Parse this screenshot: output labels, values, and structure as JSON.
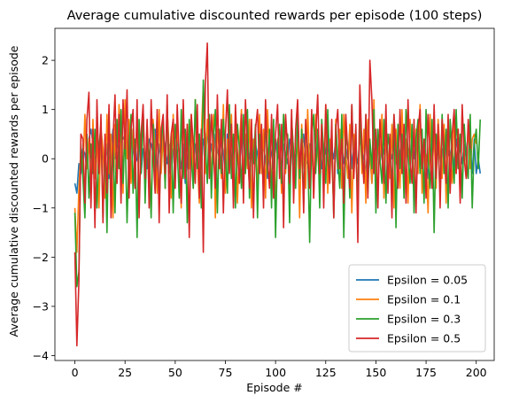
{
  "chart_data": {
    "type": "line",
    "title": "Average cumulative discounted rewards per episode (100 steps)",
    "xlabel": "Episode #",
    "ylabel": "Average cumulative discounted rewards per episode",
    "xlim": [
      -9.95,
      208.95
    ],
    "ylim": [
      -4.1,
      2.65
    ],
    "xticks": [
      0,
      25,
      50,
      75,
      100,
      125,
      150,
      175,
      200
    ],
    "yticks": [
      -4,
      -3,
      -2,
      -1,
      0,
      1,
      2
    ],
    "ytick_labels": [
      "−4",
      "−3",
      "−2",
      "−1",
      "0",
      "1",
      "2"
    ],
    "legend_position": "lower-right",
    "grid": false,
    "series": [
      {
        "name": "Epsilon = 0.05",
        "color": "#1f77b4",
        "values": [
          -0.5,
          -0.7,
          -0.1,
          -0.3,
          0.2,
          0.1,
          -0.2,
          0.4,
          0.6,
          0.3,
          -0.1,
          0.3,
          -0.3,
          0.4,
          0.0,
          -0.2,
          0.3,
          -0.4,
          0.2,
          0.6,
          0.0,
          0.3,
          0.2,
          0.5,
          0.4,
          0.5,
          0.3,
          0.1,
          0.5,
          0.2,
          -0.1,
          0.0,
          0.4,
          -0.3,
          0.2,
          0.1,
          -0.2,
          0.4,
          0.3,
          0.1,
          0.6,
          -0.4,
          0.3,
          0.0,
          0.5,
          0.2,
          -0.1,
          0.3,
          0.0,
          0.2,
          -0.4,
          0.5,
          0.1,
          -0.2,
          0.3,
          -0.5,
          0.0,
          0.4,
          0.2,
          -0.1,
          0.3,
          0.1,
          0.5,
          -0.2,
          0.4,
          0.2,
          0.6,
          0.0,
          0.3,
          -0.1,
          0.5,
          0.2,
          0.0,
          0.4,
          0.1,
          -0.3,
          0.5,
          0.3,
          0.0,
          -0.2,
          0.4,
          0.1,
          -0.1,
          0.3,
          0.5,
          -0.2,
          0.2,
          0.0,
          0.6,
          -0.1,
          0.3,
          0.1,
          -0.3,
          0.4,
          0.2,
          0.0,
          -0.4,
          0.3,
          0.1,
          -0.2,
          0.4,
          0.0,
          0.2,
          -0.5,
          0.3,
          0.1,
          -0.1,
          0.4,
          0.2,
          -0.3,
          0.0,
          0.3,
          -0.2,
          0.1,
          0.5,
          0.0,
          -0.1,
          0.3,
          0.2,
          -0.4,
          0.1,
          0.4,
          0.0,
          -0.2,
          0.3,
          0.1,
          0.5,
          -0.1,
          0.2,
          0.0,
          0.4,
          -0.3,
          0.1,
          0.3,
          -0.1,
          0.2,
          0.0,
          0.6,
          -0.2,
          0.3,
          0.1,
          -0.1,
          0.4,
          0.2,
          0.0,
          -0.3,
          0.3,
          0.1,
          -0.5,
          0.2,
          0.0,
          0.4,
          -0.1,
          0.3,
          0.1,
          0.5,
          -0.2,
          0.2,
          0.0,
          0.3,
          -0.1,
          0.4,
          0.1,
          0.0,
          -0.3,
          0.3,
          0.2,
          -0.1,
          0.4,
          0.0,
          0.2,
          0.5,
          -0.2,
          0.1,
          0.3,
          0.0,
          -0.4,
          0.2,
          0.1,
          0.4,
          -0.1,
          0.3,
          0.0,
          0.2,
          -0.3,
          0.5,
          0.1,
          0.0,
          0.3,
          -0.2,
          0.4,
          0.1,
          0.2,
          -0.1,
          0.3,
          0.0,
          0.6,
          0.2,
          -0.3,
          0.4,
          -0.3,
          0.0,
          -0.3
        ]
      },
      {
        "name": "Epsilon = 0.1",
        "color": "#ff7f0e",
        "values": [
          -1.0,
          -1.9,
          -0.6,
          0.2,
          -0.3,
          0.9,
          -0.2,
          0.4,
          -0.6,
          0.8,
          -0.4,
          0.5,
          -1.0,
          0.6,
          0.2,
          -0.8,
          0.9,
          -0.3,
          0.5,
          -1.2,
          0.7,
          -0.5,
          1.1,
          0.3,
          -0.7,
          1.2,
          0.0,
          0.8,
          -0.5,
          0.6,
          -0.2,
          0.9,
          -0.9,
          0.4,
          1.0,
          -0.6,
          0.7,
          0.0,
          -1.1,
          0.8,
          0.2,
          -0.7,
          1.0,
          -0.3,
          0.5,
          -0.6,
          1.0,
          0.2,
          -0.8,
          0.9,
          -0.4,
          0.6,
          0.1,
          -1.0,
          1.1,
          -0.4,
          0.7,
          -0.2,
          0.9,
          -0.6,
          1.2,
          0.0,
          -0.9,
          0.5,
          1.5,
          -0.3,
          0.8,
          0.1,
          -0.5,
          0.9,
          -1.2,
          0.6,
          0.2,
          -0.4,
          1.1,
          -0.7,
          0.4,
          0.0,
          0.9,
          -0.5,
          0.7,
          -0.9,
          0.3,
          1.0,
          -0.6,
          0.5,
          -0.2,
          0.8,
          -1.0,
          0.4,
          0.1,
          -0.6,
          0.9,
          -0.3,
          0.6,
          -0.8,
          1.0,
          0.0,
          -0.5,
          0.7,
          -1.1,
          0.4,
          0.2,
          -0.7,
          0.9,
          -0.3,
          0.5,
          -0.9,
          0.8,
          0.1,
          -0.4,
          0.6,
          -1.2,
          0.7,
          0.0,
          -0.6,
          1.0,
          -0.2,
          0.5,
          -0.8,
          0.9,
          0.1,
          -0.5,
          0.7,
          -0.3,
          1.1,
          -0.7,
          0.4,
          0.0,
          -1.0,
          0.8,
          -0.2,
          0.6,
          -0.6,
          0.9,
          0.1,
          -0.4,
          0.7,
          -1.1,
          0.5,
          0.0,
          -0.7,
          1.0,
          -0.3,
          0.6,
          -0.9,
          0.8,
          0.2,
          -0.5,
          1.2,
          -0.6,
          0.4,
          -0.1,
          0.9,
          -0.8,
          0.5,
          0.1,
          -0.4,
          0.7,
          -1.0,
          0.6,
          0.0,
          -0.6,
          1.0,
          -0.2,
          0.4,
          -0.9,
          0.8,
          0.1,
          -0.5,
          0.6,
          -0.3,
          1.1,
          -0.7,
          0.3,
          0.0,
          -1.1,
          0.9,
          -0.2,
          0.5,
          -0.6,
          0.8,
          0.1,
          -0.4,
          0.7,
          -0.9,
          0.5,
          0.0,
          -0.5,
          0.9,
          -0.3,
          0.6,
          -0.8,
          1.0,
          0.1,
          -0.4,
          0.7,
          -0.2,
          0.4,
          0.5,
          0.3
        ]
      },
      {
        "name": "Epsilon = 0.3",
        "color": "#2ca02c",
        "values": [
          -1.1,
          -2.6,
          -2.3,
          0.3,
          -0.4,
          -1.2,
          0.5,
          -0.8,
          0.3,
          -0.3,
          0.6,
          -1.0,
          0.2,
          0.7,
          -1.2,
          0.4,
          -1.5,
          0.9,
          -0.6,
          0.3,
          -1.1,
          0.8,
          -0.2,
          1.0,
          -0.5,
          0.6,
          -1.3,
          0.2,
          0.9,
          -0.7,
          0.4,
          -1.6,
          0.8,
          -0.3,
          1.0,
          -0.9,
          0.5,
          0.1,
          -1.2,
          0.7,
          -0.4,
          0.9,
          -1.0,
          0.3,
          0.8,
          -0.6,
          1.1,
          -0.3,
          0.5,
          -1.1,
          0.7,
          0.2,
          -0.8,
          1.0,
          -0.4,
          0.6,
          -1.3,
          0.8,
          0.0,
          -0.6,
          1.2,
          -0.2,
          0.5,
          -1.0,
          1.6,
          0.3,
          -0.5,
          0.9,
          -0.8,
          0.4,
          1.0,
          -1.1,
          0.6,
          -0.3,
          0.8,
          0.1,
          -0.7,
          1.1,
          -0.4,
          0.5,
          -1.0,
          0.7,
          0.2,
          -0.6,
          0.9,
          -0.3,
          1.0,
          -0.8,
          0.4,
          -0.1,
          0.7,
          -1.2,
          0.5,
          0.2,
          -0.6,
          0.9,
          -0.3,
          0.6,
          -1.0,
          0.8,
          -1.6,
          0.3,
          0.7,
          -0.5,
          0.9,
          -0.2,
          0.5,
          -1.3,
          0.8,
          0.1,
          -0.6,
          1.0,
          -0.4,
          0.6,
          -0.9,
          0.7,
          0.2,
          -1.7,
          0.5,
          0.9,
          -0.3,
          0.6,
          -1.0,
          0.8,
          0.1,
          -0.5,
          1.0,
          -0.2,
          0.4,
          -1.2,
          0.7,
          0.0,
          -0.6,
          0.9,
          -1.6,
          0.5,
          0.2,
          -0.8,
          1.1,
          -0.3,
          0.6,
          -1.0,
          0.8,
          0.1,
          -0.4,
          0.9,
          -0.7,
          0.4,
          -0.2,
          1.0,
          -1.1,
          0.6,
          0.0,
          -0.5,
          0.8,
          -0.9,
          0.5,
          0.2,
          -0.6,
          0.9,
          -1.4,
          0.7,
          -0.2,
          0.5,
          -0.8,
          1.0,
          0.1,
          -0.5,
          0.7,
          -1.1,
          0.4,
          0.8,
          -0.3,
          0.6,
          -0.9,
          1.0,
          0.0,
          -0.6,
          0.8,
          -1.5,
          0.5,
          0.2,
          -0.7,
          0.9,
          -0.3,
          0.6,
          -1.0,
          0.8,
          0.1,
          -0.5,
          1.0,
          -0.2,
          0.5,
          -0.8,
          0.7,
          0.0,
          -0.4,
          0.9,
          -1.0,
          0.3,
          0.6,
          -0.2,
          0.8
        ]
      },
      {
        "name": "Epsilon = 0.5",
        "color": "#d62728",
        "values": [
          -1.9,
          -3.8,
          -2.5,
          0.5,
          0.4,
          -0.9,
          0.8,
          1.35,
          -1.0,
          0.6,
          -1.4,
          1.2,
          -0.3,
          0.9,
          -1.3,
          0.5,
          -0.7,
          1.1,
          -1.2,
          0.4,
          1.3,
          -0.5,
          0.9,
          -0.9,
          1.2,
          0.2,
          1.4,
          -0.8,
          0.6,
          1.0,
          -0.6,
          1.2,
          -1.2,
          0.5,
          1.1,
          -0.4,
          0.8,
          -1.0,
          1.2,
          0.1,
          -0.7,
          1.0,
          -1.3,
          0.6,
          0.9,
          -0.3,
          1.3,
          -1.1,
          0.5,
          0.8,
          -0.6,
          1.1,
          0.0,
          -0.9,
          1.2,
          -0.4,
          0.7,
          -1.6,
          0.9,
          0.3,
          -0.5,
          1.1,
          -0.8,
          0.6,
          -1.9,
          1.5,
          2.35,
          -0.4,
          0.9,
          0.2,
          -0.6,
          1.3,
          -0.2,
          0.8,
          -1.1,
          0.5,
          1.4,
          -0.3,
          0.7,
          -1.0,
          1.1,
          0.1,
          -0.5,
          0.9,
          -0.9,
          1.2,
          0.2,
          -0.6,
          0.8,
          -1.2,
          0.6,
          1.0,
          -0.3,
          0.7,
          -1.0,
          1.2,
          0.0,
          -0.6,
          0.9,
          -0.8,
          0.5,
          1.1,
          -0.4,
          0.7,
          -1.4,
          0.9,
          0.2,
          -0.5,
          1.0,
          -0.9,
          0.6,
          1.2,
          -0.2,
          0.4,
          -1.1,
          0.8,
          0.1,
          -0.6,
          1.0,
          -0.8,
          0.5,
          1.3,
          -0.3,
          0.7,
          -1.0,
          1.1,
          0.0,
          -0.5,
          0.8,
          -1.2,
          0.6,
          1.0,
          -0.2,
          0.4,
          -0.9,
          0.9,
          0.1,
          -0.6,
          1.1,
          -0.4,
          0.7,
          -1.7,
          1.5,
          0.3,
          -0.5,
          0.9,
          -0.8,
          2.0,
          1.2,
          -0.3,
          0.6,
          -1.0,
          0.8,
          0.1,
          -0.5,
          1.1,
          -0.7,
          0.5,
          -1.2,
          0.9,
          0.2,
          -0.6,
          1.0,
          -0.3,
          0.7,
          -0.9,
          1.2,
          0.0,
          -0.5,
          0.8,
          -1.1,
          0.6,
          1.0,
          -0.2,
          0.4,
          -0.8,
          0.9,
          0.1,
          -0.6,
          1.1,
          -0.4,
          0.7,
          -1.0,
          0.8,
          0.2,
          -0.5,
          0.9,
          -0.7,
          0.5,
          1.0,
          -0.3,
          0.6,
          -0.9,
          1.1,
          0.0,
          -0.4,
          0.8,
          0.2
        ]
      }
    ]
  }
}
